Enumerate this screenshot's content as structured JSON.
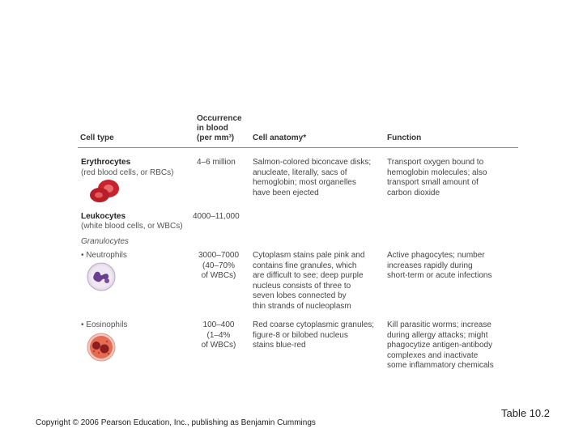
{
  "header": {
    "cell_type": "Cell type",
    "occurrence": [
      "Occurrence",
      "in blood",
      "(per mm³)"
    ],
    "anatomy": "Cell anatomy*",
    "function": "Function"
  },
  "rows": {
    "erythrocytes": {
      "name": "Erythrocytes",
      "sub": "(red blood cells, or RBCs)",
      "occurrence": "4–6 million",
      "anatomy": [
        "Salmon-colored biconcave disks;",
        "anucleate, literally, sacs of",
        "hemoglobin; most organelles",
        "have been ejected"
      ],
      "function": [
        "Transport oxygen bound to",
        "hemoglobin molecules; also",
        "transport small amount of",
        "carbon dioxide"
      ]
    },
    "leukocytes": {
      "name": "Leukocytes",
      "sub": "(white blood cells, or WBCs)",
      "occurrence": "4000–11,000"
    },
    "granulocytes": {
      "label": "Granulocytes"
    },
    "neutrophils": {
      "name": "• Neutrophils",
      "occurrence": [
        "3000–7000",
        "(40–70%",
        "of WBCs)"
      ],
      "anatomy": [
        "Cytoplasm stains pale pink and",
        "contains fine granules, which",
        "are difficult to see; deep purple",
        "nucleus consists of three to",
        "seven lobes connected by",
        "thin strands of nucleoplasm"
      ],
      "function": [
        "Active phagocytes; number",
        "increases rapidly during",
        "short-term or acute infections"
      ]
    },
    "eosinophils": {
      "name": "• Eosinophils",
      "occurrence": [
        "100–400",
        "(1–4%",
        "of WBCs)"
      ],
      "anatomy": [
        "Red coarse cytoplasmic granules;",
        "figure-8 or bilobed nucleus",
        "stains blue-red"
      ],
      "function": [
        "Kill parasitic worms; increase",
        "during allergy attacks; might",
        "phagocytize antigen-antibody",
        "complexes and inactivate",
        "some inflammatory chemicals"
      ]
    }
  },
  "footer": {
    "copyright": "Copyright © 2006 Pearson Education, Inc., publishing as Benjamin Cummings",
    "table_label": "Table 10.2"
  }
}
